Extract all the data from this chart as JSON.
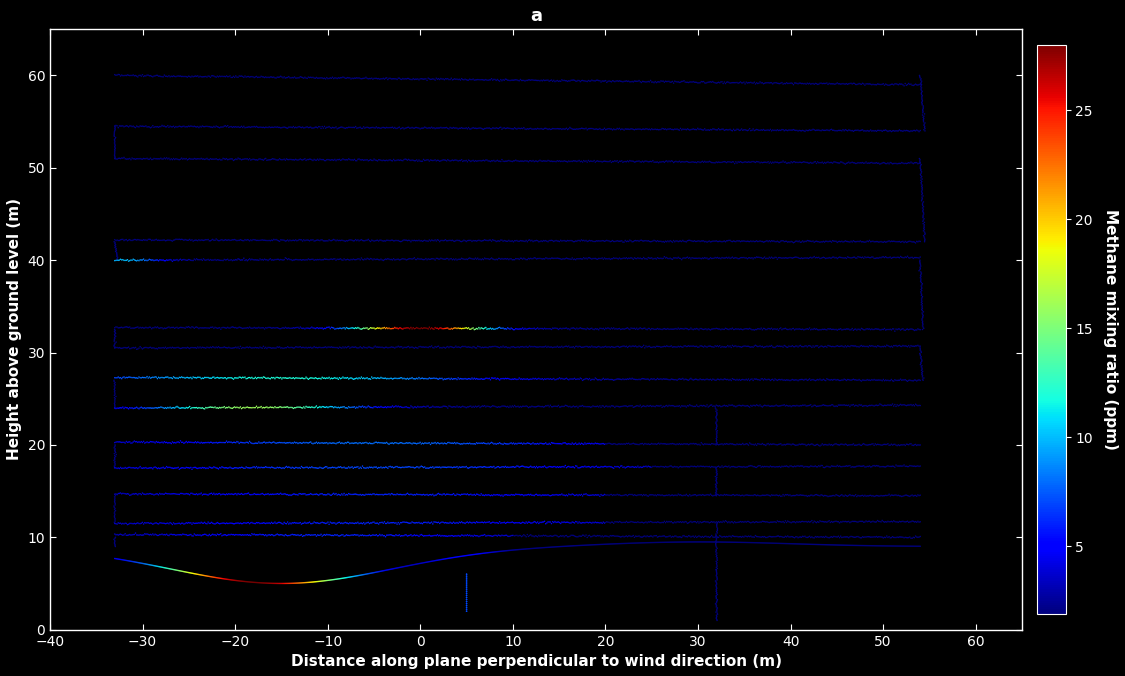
{
  "title": "a",
  "xlabel": "Distance along plane perpendicular to wind direction (m)",
  "ylabel": "Height above ground level (m)",
  "colorbar_label": "Methane mixing ratio (ppm)",
  "xlim": [
    -40,
    65
  ],
  "ylim": [
    0,
    65
  ],
  "xticks": [
    -40,
    -30,
    -20,
    -10,
    0,
    10,
    20,
    30,
    40,
    50,
    60
  ],
  "yticks": [
    0,
    10,
    20,
    30,
    40,
    50,
    60
  ],
  "cmap": "jet",
  "vmin": 1.9,
  "vmax": 28,
  "colorbar_ticks": [
    5,
    10,
    15,
    20,
    25
  ],
  "background_color": "#000000",
  "line_width": 2.0,
  "title_fontsize": 13,
  "label_fontsize": 11,
  "tick_fontsize": 10,
  "colorbar_fontsize": 11
}
